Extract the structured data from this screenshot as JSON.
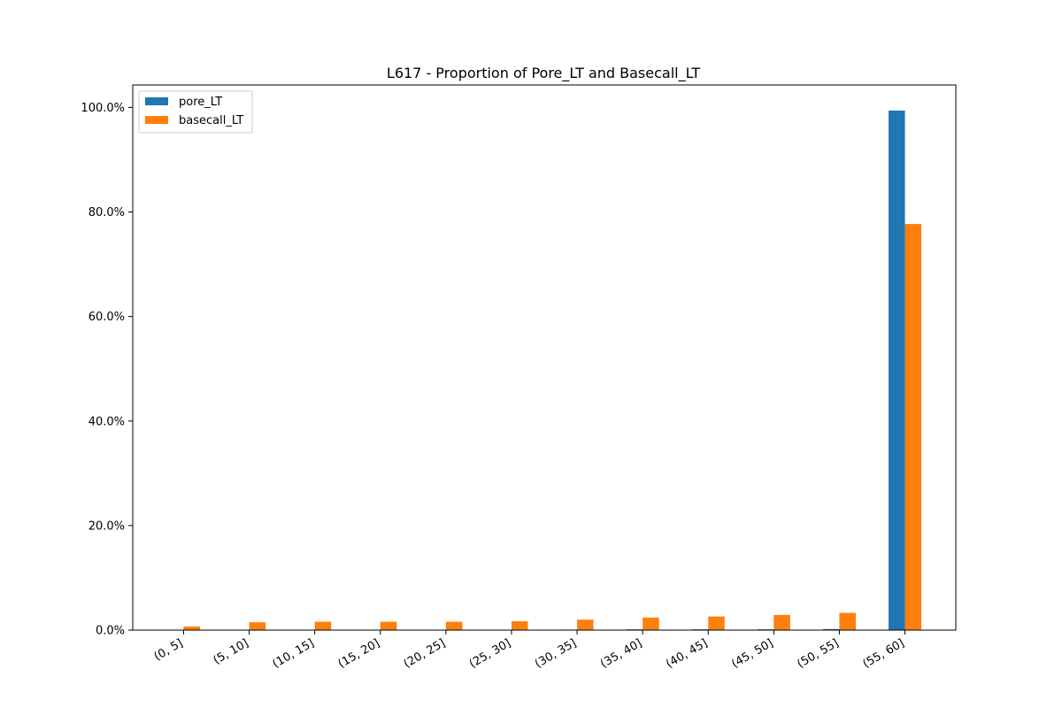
{
  "chart_data": {
    "type": "bar",
    "title": "L617 -  Proportion of Pore_LT and Basecall_LT",
    "xlabel": "",
    "ylabel": "",
    "categories": [
      "(0, 5]",
      "(5, 10]",
      "(10, 15]",
      "(15, 20]",
      "(20, 25]",
      "(25, 30]",
      "(30, 35]",
      "(35, 40]",
      "(40, 45]",
      "(45, 50]",
      "(50, 55]",
      "(55, 60]"
    ],
    "series": [
      {
        "name": "pore_LT",
        "color": "#1f77b4",
        "values": [
          0.0,
          0.0,
          0.0,
          0.0,
          0.0,
          0.0,
          0.1,
          0.15,
          0.15,
          0.15,
          0.2,
          99.4
        ]
      },
      {
        "name": "basecall_LT",
        "color": "#ff7f0e",
        "values": [
          0.7,
          1.5,
          1.6,
          1.6,
          1.6,
          1.7,
          2.0,
          2.4,
          2.6,
          2.9,
          3.3,
          77.7
        ]
      }
    ],
    "ylim": [
      0,
      104.3
    ],
    "yticks": [
      0,
      20,
      40,
      60,
      80,
      100
    ],
    "ytick_labels": [
      "0.0%",
      "20.0%",
      "40.0%",
      "60.0%",
      "80.0%",
      "100.0%"
    ],
    "legend_position": "top-left",
    "grid": false
  }
}
